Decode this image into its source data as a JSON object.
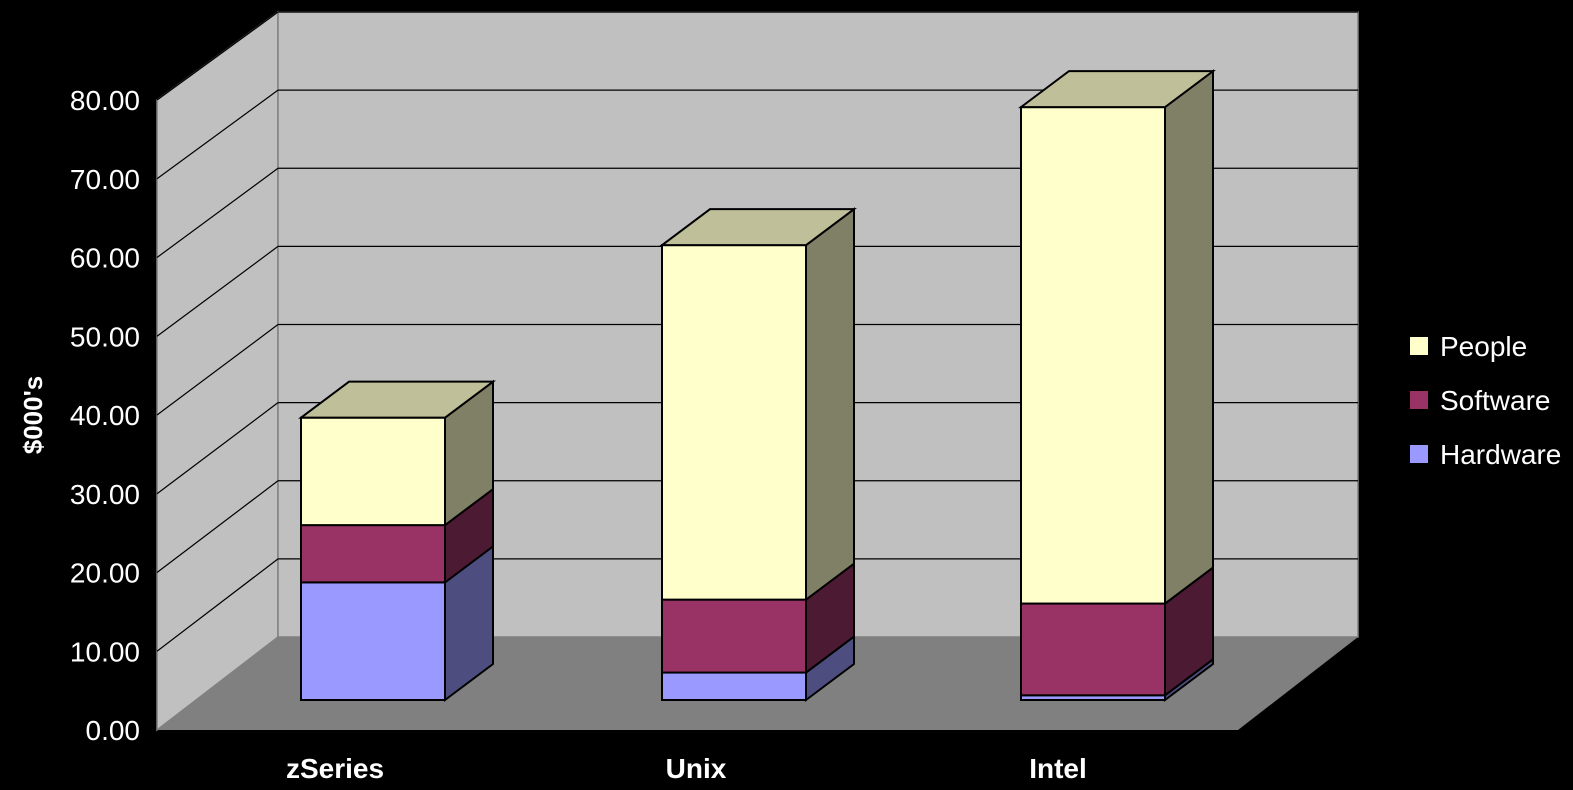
{
  "chart_data": {
    "type": "bar",
    "stacked": true,
    "view": "3d",
    "categories": [
      "zSeries",
      "Unix",
      "Intel"
    ],
    "series": [
      {
        "name": "Hardware",
        "values": [
          15.0,
          3.5,
          0.6
        ]
      },
      {
        "name": "Software",
        "values": [
          7.3,
          9.3,
          11.7
        ]
      },
      {
        "name": "People",
        "values": [
          13.7,
          45.2,
          63.3
        ]
      }
    ],
    "ylabel": "$000's",
    "ylim": [
      0,
      80
    ],
    "yticks": [
      "0.00",
      "10.00",
      "20.00",
      "30.00",
      "40.00",
      "50.00",
      "60.00",
      "70.00",
      "80.00"
    ],
    "grid": true,
    "legend": "right",
    "colors": {
      "Hardware": "#9999ff",
      "Software": "#993366",
      "People": "#ffffcc",
      "wall": "#c0c0c0",
      "floor": "#808080",
      "background": "#000000"
    }
  }
}
